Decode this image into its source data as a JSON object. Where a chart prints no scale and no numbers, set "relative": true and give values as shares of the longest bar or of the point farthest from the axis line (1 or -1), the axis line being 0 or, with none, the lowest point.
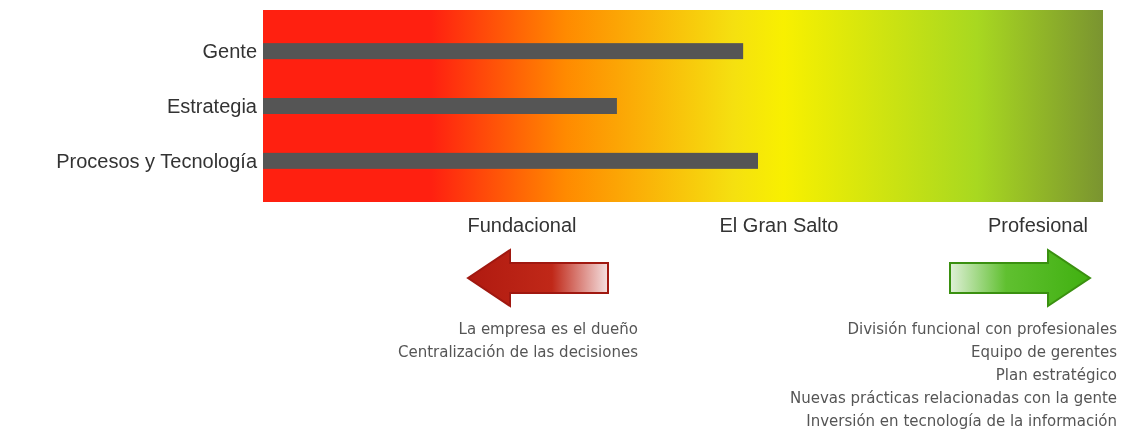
{
  "chart_data": {
    "type": "bar",
    "orientation": "horizontal",
    "relative": true,
    "categories": [
      "Gente",
      "Estrategia",
      "Procesos y Tecnología"
    ],
    "values": [
      0.97,
      0.715,
      1
    ],
    "color": "#555555",
    "annotations": [
      "Fundacional",
      "El Gran Salto",
      "Profesional",
      "La empresa es el dueño",
      "Centralización de las decisiones",
      "División funcional con profesionales",
      "Equipo de gerentes",
      "Plan estratégico",
      "Nuevas prácticas relacionadas con la gente",
      "Inversión en tecnología de la información"
    ]
  }
}
